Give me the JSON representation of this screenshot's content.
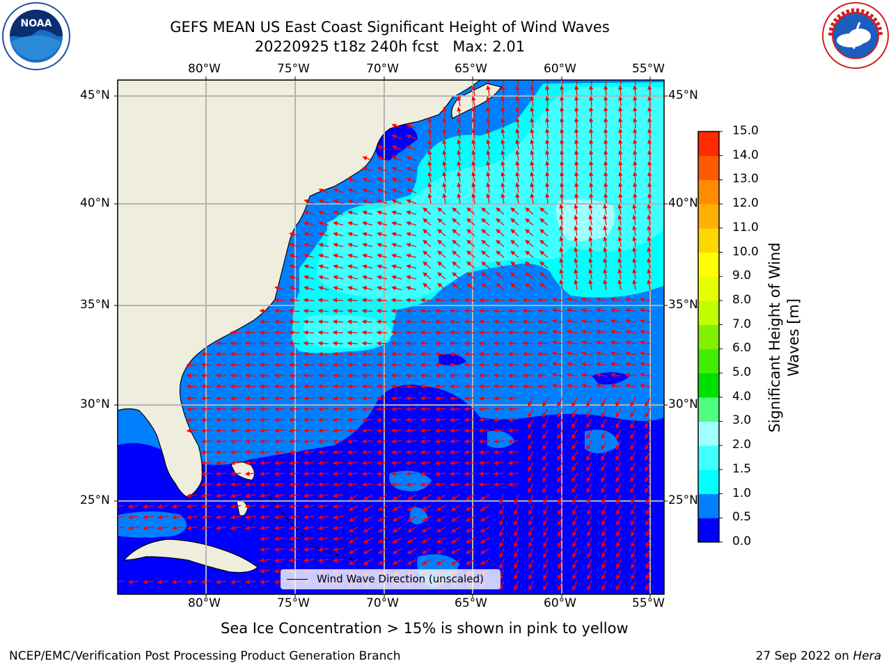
{
  "title": {
    "line1": "GEFS MEAN US East Coast Significant Height of Wind Waves",
    "line2": "20220925 t18z 240h fcst   Max: 2.01"
  },
  "logos": {
    "left": {
      "text": "NOAA",
      "ring_text": "NATIONAL OCEANIC AND ATMOSPHERIC ADMINISTRATION · U.S. DEPARTMENT OF COMMERCE"
    },
    "right": {
      "ring_text": "NATIONAL WEATHER SERVICE"
    }
  },
  "map": {
    "lon_labels": [
      "80°W",
      "75°W",
      "70°W",
      "65°W",
      "60°W",
      "55°W"
    ],
    "lat_labels": [
      "45°N",
      "40°N",
      "35°N",
      "30°N",
      "25°N"
    ],
    "legend_label": "Wind Wave Direction (unscaled)",
    "colors": {
      "land": "#efedde",
      "grid": "#b3b3b3",
      "arrow": "#ff0000"
    }
  },
  "colorbar": {
    "label": "Significant Height of Wind Waves [m]",
    "tick_labels": [
      "0.0",
      "0.5",
      "1.0",
      "1.5",
      "2.0",
      "3.0",
      "4.0",
      "5.0",
      "6.0",
      "7.0",
      "8.0",
      "9.0",
      "10.0",
      "11.0",
      "12.0",
      "13.0",
      "14.0",
      "15.0"
    ],
    "colors": [
      "#0000ff",
      "#0080ff",
      "#00ffff",
      "#40ffff",
      "#a0ffff",
      "#50ff80",
      "#00e000",
      "#40ee00",
      "#80f000",
      "#c0ff00",
      "#e8ff00",
      "#ffff00",
      "#ffd700",
      "#ffb000",
      "#ff8c00",
      "#ff5a00",
      "#ff2a00",
      "#ff0000"
    ]
  },
  "footer": {
    "note": "Sea Ice Concentration > 15% is shown in pink to yellow",
    "left": "NCEP/EMC/Verification Post Processing Product Generation Branch",
    "date": "27 Sep 2022 on ",
    "machine": "Hera"
  }
}
